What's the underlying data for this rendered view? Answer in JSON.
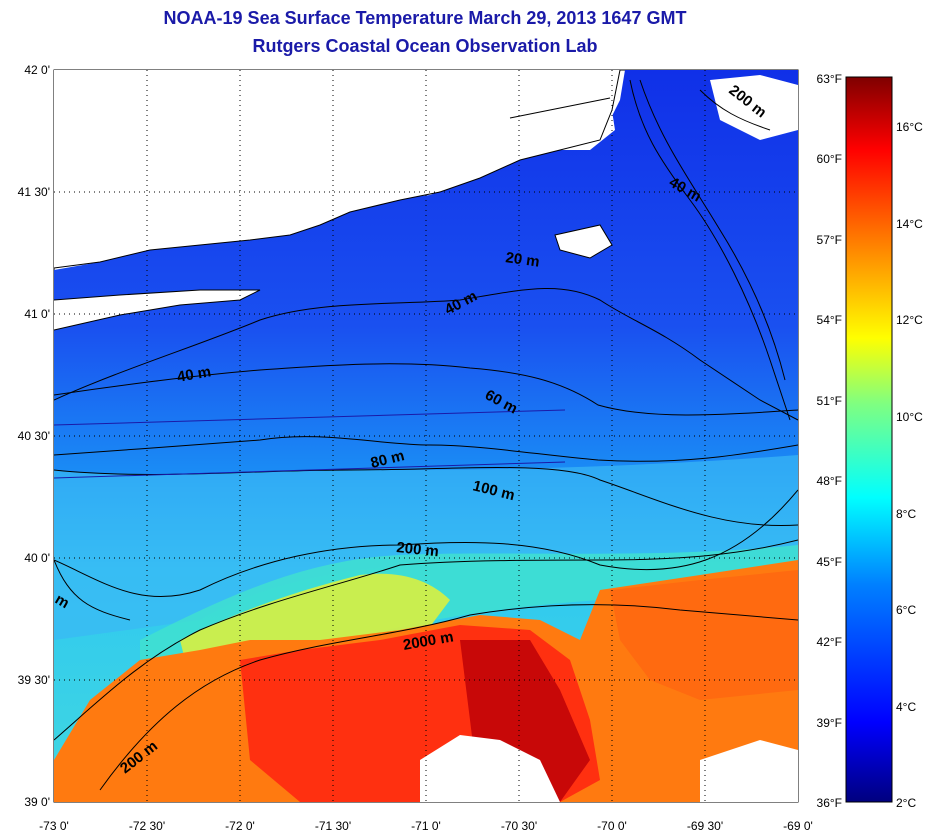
{
  "header": {
    "title": "NOAA-19 Sea Surface Temperature March 29, 2013 1647 GMT",
    "subtitle": "Rutgers Coastal Ocean Observation Lab"
  },
  "map": {
    "lon_ticks": [
      "-73 0'",
      "-72 30'",
      "-72 0'",
      "-71 30'",
      "-71 0'",
      "-70 30'",
      "-70 0'",
      "-69 30'",
      "-69 0'"
    ],
    "lat_ticks": [
      "42 0'",
      "41 30'",
      "41 0'",
      "40 30'",
      "40 0'",
      "39 30'",
      "39 0'"
    ],
    "lon_range": [
      -73,
      -69
    ],
    "lat_range": [
      39,
      42
    ],
    "contour_labels": [
      "20 m",
      "40 m",
      "40 m",
      "40 m",
      "60 m",
      "80 m",
      "100 m",
      "200 m",
      "200 m",
      "200 m",
      "2000 m",
      "m"
    ]
  },
  "colorbar": {
    "fahrenheit_ticks": [
      "63°F",
      "60°F",
      "57°F",
      "54°F",
      "51°F",
      "48°F",
      "45°F",
      "42°F",
      "39°F",
      "36°F"
    ],
    "celsius_ticks": [
      "16°C",
      "14°C",
      "12°C",
      "10°C",
      "8°C",
      "6°C",
      "4°C",
      "2°C"
    ],
    "colors": [
      "#00007f",
      "#0000ff",
      "#0080ff",
      "#00ffff",
      "#80ff80",
      "#ffff00",
      "#ff8000",
      "#ff0000",
      "#7f0000"
    ]
  }
}
